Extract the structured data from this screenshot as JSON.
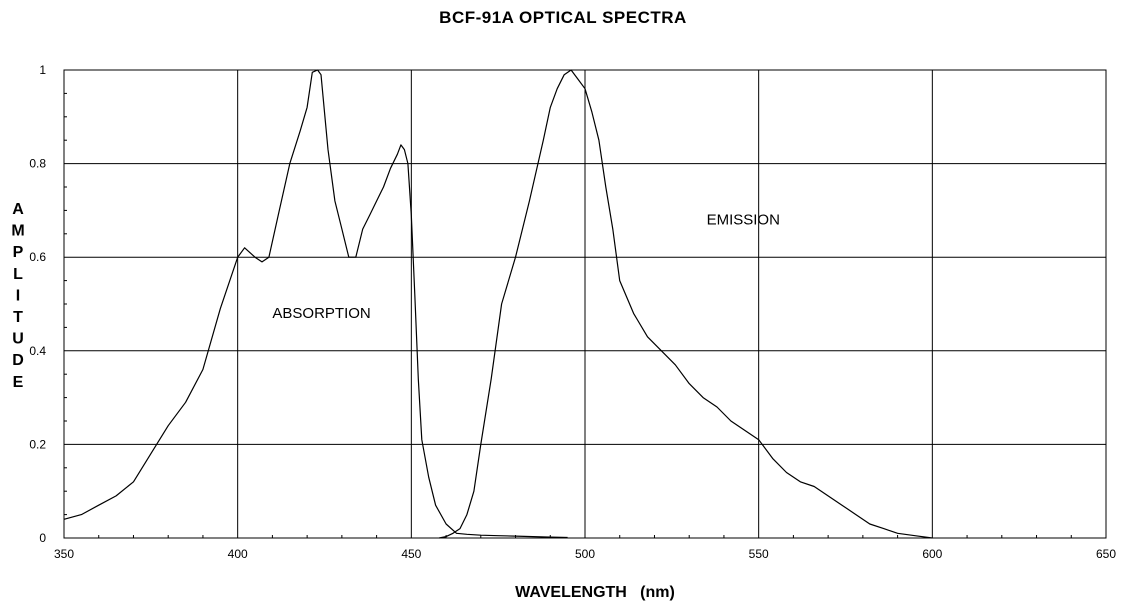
{
  "chart_data": {
    "type": "line",
    "title": "BCF-91A OPTICAL SPECTRA",
    "xlabel": "WAVELENGTH   (nm)",
    "ylabel": "AMPLITUDE",
    "xlim": [
      350,
      650
    ],
    "ylim": [
      0,
      1
    ],
    "x_ticks": [
      350,
      400,
      450,
      500,
      550,
      600,
      650
    ],
    "y_ticks": [
      0,
      0.2,
      0.4,
      0.6,
      0.8,
      1
    ],
    "y_tick_labels": [
      "0",
      "0.2",
      "0.4",
      "0.6",
      "0.8",
      "1"
    ],
    "grid": true,
    "legend": "none",
    "annotations": [
      {
        "text": "ABSORPTION",
        "x": 410,
        "y": 0.47
      },
      {
        "text": "EMISSION",
        "x": 535,
        "y": 0.67
      }
    ],
    "series": [
      {
        "x": [
          350,
          355,
          360,
          365,
          370,
          375,
          380,
          385,
          390,
          395,
          400,
          402,
          405,
          407,
          409,
          412,
          415,
          418,
          420,
          421.5,
          423,
          424,
          426,
          428,
          430,
          432,
          434,
          436,
          438,
          440,
          442,
          444,
          446,
          447,
          448,
          449,
          450,
          451,
          452,
          453,
          455,
          457,
          460,
          463,
          466,
          470,
          475,
          480,
          485,
          490,
          495
        ],
        "y": [
          0.04,
          0.05,
          0.07,
          0.09,
          0.12,
          0.18,
          0.24,
          0.29,
          0.36,
          0.49,
          0.6,
          0.62,
          0.6,
          0.59,
          0.6,
          0.7,
          0.8,
          0.87,
          0.92,
          0.995,
          1.0,
          0.99,
          0.83,
          0.72,
          0.66,
          0.6,
          0.6,
          0.66,
          0.69,
          0.72,
          0.75,
          0.79,
          0.82,
          0.84,
          0.83,
          0.8,
          0.69,
          0.52,
          0.34,
          0.21,
          0.13,
          0.07,
          0.03,
          0.01,
          0.008,
          0.006,
          0.005,
          0.004,
          0.003,
          0.002,
          0.001
        ]
      },
      {
        "x": [
          458,
          460,
          462,
          464,
          466,
          468,
          470,
          473,
          476,
          480,
          484,
          488,
          490,
          492,
          494,
          496,
          498,
          500,
          502,
          504,
          506,
          508,
          510,
          514,
          518,
          522,
          526,
          530,
          534,
          538,
          542,
          546,
          550,
          554,
          558,
          562,
          566,
          570,
          574,
          578,
          582,
          586,
          590,
          595,
          600
        ],
        "y": [
          0.0,
          0.003,
          0.01,
          0.02,
          0.05,
          0.1,
          0.2,
          0.34,
          0.5,
          0.6,
          0.72,
          0.85,
          0.92,
          0.96,
          0.99,
          1.0,
          0.98,
          0.96,
          0.91,
          0.85,
          0.75,
          0.66,
          0.55,
          0.48,
          0.43,
          0.4,
          0.37,
          0.33,
          0.3,
          0.28,
          0.25,
          0.23,
          0.21,
          0.17,
          0.14,
          0.12,
          0.11,
          0.09,
          0.07,
          0.05,
          0.03,
          0.02,
          0.01,
          0.005,
          0.0
        ]
      }
    ]
  }
}
